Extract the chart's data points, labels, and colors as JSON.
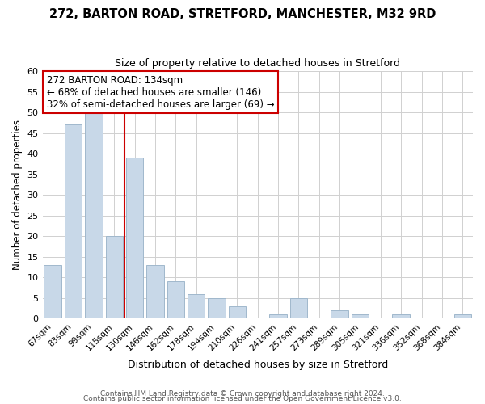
{
  "title": "272, BARTON ROAD, STRETFORD, MANCHESTER, M32 9RD",
  "subtitle": "Size of property relative to detached houses in Stretford",
  "xlabel": "Distribution of detached houses by size in Stretford",
  "ylabel": "Number of detached properties",
  "bar_labels": [
    "67sqm",
    "83sqm",
    "99sqm",
    "115sqm",
    "130sqm",
    "146sqm",
    "162sqm",
    "178sqm",
    "194sqm",
    "210sqm",
    "226sqm",
    "241sqm",
    "257sqm",
    "273sqm",
    "289sqm",
    "305sqm",
    "321sqm",
    "336sqm",
    "352sqm",
    "368sqm",
    "384sqm"
  ],
  "bar_values": [
    13,
    47,
    50,
    20,
    39,
    13,
    9,
    6,
    5,
    3,
    0,
    1,
    5,
    0,
    2,
    1,
    0,
    1,
    0,
    0,
    1
  ],
  "bar_color": "#c8d8e8",
  "bar_edgecolor": "#a0b8cc",
  "vline_x": 3.5,
  "vline_color": "#cc0000",
  "annotation_title": "272 BARTON ROAD: 134sqm",
  "annotation_line1": "← 68% of detached houses are smaller (146)",
  "annotation_line2": "32% of semi-detached houses are larger (69) →",
  "annotation_box_color": "#ffffff",
  "annotation_box_edgecolor": "#cc0000",
  "ylim": [
    0,
    60
  ],
  "yticks": [
    0,
    5,
    10,
    15,
    20,
    25,
    30,
    35,
    40,
    45,
    50,
    55,
    60
  ],
  "footer1": "Contains HM Land Registry data © Crown copyright and database right 2024.",
  "footer2": "Contains public sector information licensed under the Open Government Licence v3.0.",
  "background_color": "#ffffff",
  "grid_color": "#d0d0d0"
}
